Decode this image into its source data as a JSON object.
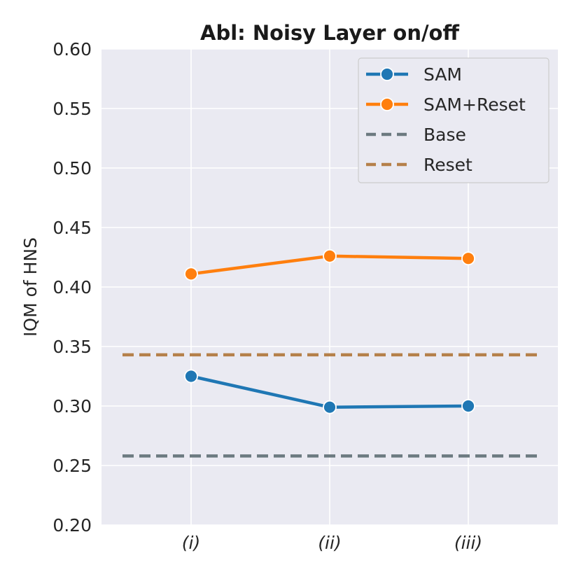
{
  "chart_data": {
    "type": "line",
    "title": "Abl: Noisy Layer on/off",
    "xlabel": "",
    "ylabel": "IQM of HNS",
    "categories": [
      "(i)",
      "(ii)",
      "(iii)"
    ],
    "ylim": [
      0.2,
      0.6
    ],
    "yticks": [
      "0.20",
      "0.25",
      "0.30",
      "0.35",
      "0.40",
      "0.45",
      "0.50",
      "0.55",
      "0.60"
    ],
    "grid": true,
    "legend_position": "top-right",
    "series": [
      {
        "name": "SAM",
        "values": [
          0.325,
          0.299,
          0.3
        ],
        "color": "#1f77b4",
        "style": "solid-marker"
      },
      {
        "name": "SAM+Reset",
        "values": [
          0.411,
          0.426,
          0.424
        ],
        "color": "#ff7f0e",
        "style": "solid-marker"
      }
    ],
    "reference_lines": [
      {
        "name": "Base",
        "value": 0.258,
        "color": "#6c7a80",
        "style": "dashed"
      },
      {
        "name": "Reset",
        "value": 0.343,
        "color": "#b5804a",
        "style": "dashed"
      }
    ],
    "background_color": "#eaeaf2"
  }
}
